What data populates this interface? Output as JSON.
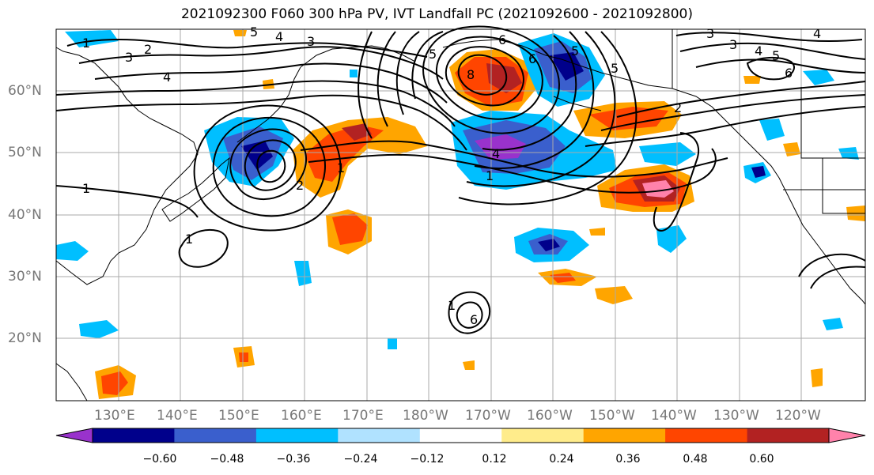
{
  "title": "2021092300 F060 300 hPa PV, IVT Landfall PC (2021092600 - 2021092800)",
  "lat_labels": [
    "60°N",
    "50°N",
    "40°N",
    "30°N",
    "20°N"
  ],
  "lon_labels": [
    "130°E",
    "140°E",
    "150°E",
    "160°E",
    "170°E",
    "180°W",
    "170°W",
    "160°W",
    "150°W",
    "140°W",
    "130°W",
    "120°W"
  ],
  "colorbar": {
    "ticks": [
      "−0.60",
      "−0.48",
      "−0.36",
      "−0.24",
      "−0.12",
      "0.12",
      "0.24",
      "0.36",
      "0.48",
      "0.60"
    ],
    "colors": [
      "#9932CC",
      "#00008B",
      "#3A5FCD",
      "#00BFFF",
      "#B0E2FF",
      "#FFFFFF",
      "#FFEC8B",
      "#FFA500",
      "#FF4500",
      "#B22222",
      "#FF82AB"
    ]
  },
  "contour_labels": [
    "1",
    "3",
    "2",
    "4",
    "3",
    "5",
    "4",
    "3",
    "6",
    "5",
    "6",
    "5",
    "5",
    "2",
    "1",
    "1",
    "6",
    "4",
    "1",
    "2",
    "1",
    "1",
    "8",
    "4",
    "3",
    "4",
    "5",
    "6"
  ]
}
